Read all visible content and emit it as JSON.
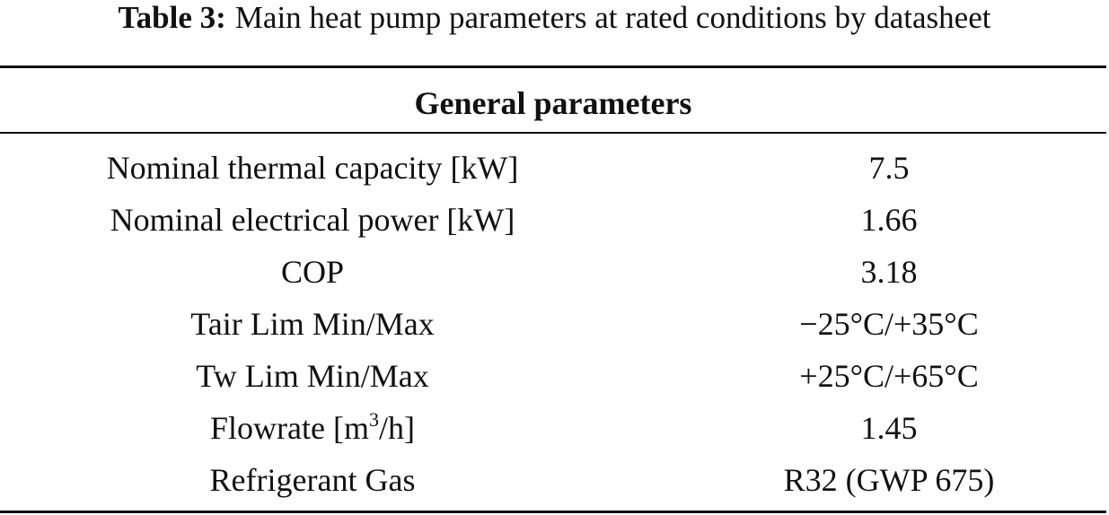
{
  "caption": {
    "label": "Table 3:",
    "text": "Main heat pump parameters at rated conditions by datasheet"
  },
  "table": {
    "header": "General parameters",
    "rows": [
      [
        "Nominal thermal capacity [kW]",
        "7.5"
      ],
      [
        "Nominal electrical power [kW]",
        "1.66"
      ],
      [
        "COP",
        "3.18"
      ],
      [
        "Tair Lim Min/Max",
        "−25°C/+35°C"
      ],
      [
        "Tw Lim Min/Max",
        "+25°C/+65°C"
      ],
      [
        [
          "Flowrate [m",
          "3",
          "/h]"
        ],
        "1.45"
      ],
      [
        "Refrigerant Gas",
        "R32 (GWP 675)"
      ]
    ]
  }
}
